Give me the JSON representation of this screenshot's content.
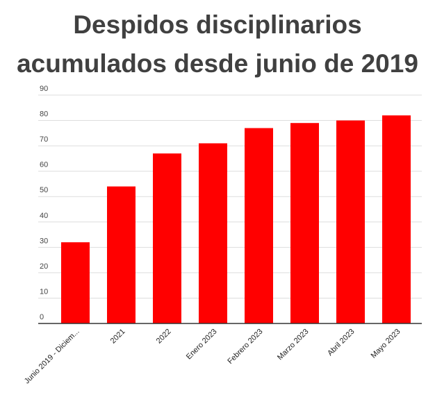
{
  "chart_data": {
    "type": "bar",
    "title_lines": [
      "Despidos disciplinarios",
      "acumulados desde junio de 2019"
    ],
    "xlabel": "",
    "ylabel": "",
    "categories": [
      "Junio 2019 - Diciem...",
      "2021",
      "2022",
      "Enero 2023",
      "Febrero 2023",
      "Marzo 2023",
      "Abril 2023",
      "Mayo 2023"
    ],
    "values": [
      32,
      54,
      67,
      71,
      77,
      79,
      80,
      82
    ],
    "ylim": [
      0,
      90
    ],
    "yticks": [
      "0",
      "10",
      "20",
      "30",
      "40",
      "50",
      "60",
      "70",
      "80",
      "90"
    ],
    "bar_color": "#ff0000",
    "grid": true,
    "legend": "none"
  }
}
